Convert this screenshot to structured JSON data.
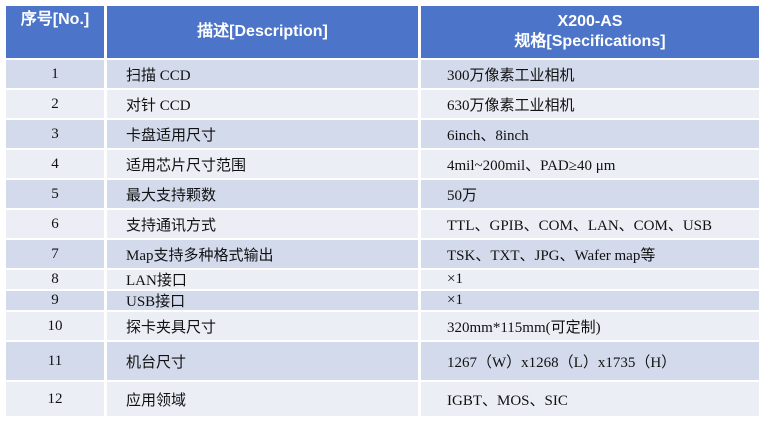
{
  "table": {
    "headers": {
      "no": "序号[No.]",
      "description": "描述[Description]",
      "spec_line1": "X200-AS",
      "spec_line2": "规格[Specifications]"
    },
    "rows": [
      {
        "no": "1",
        "description": "扫描 CCD",
        "spec": "300万像素工业相机"
      },
      {
        "no": "2",
        "description": "对针 CCD",
        "spec": "630万像素工业相机"
      },
      {
        "no": "3",
        "description": "卡盘适用尺寸",
        "spec": "6inch、8inch"
      },
      {
        "no": "4",
        "description": "适用芯片尺寸范围",
        "spec": "4mil~200mil、PAD≥40 μm"
      },
      {
        "no": "5",
        "description": "最大支持颗数",
        "spec": "50万"
      },
      {
        "no": "6",
        "description": "支持通讯方式",
        "spec": "TTL、GPIB、COM、LAN、COM、USB"
      },
      {
        "no": "7",
        "description": "Map支持多种格式输出",
        "spec": "TSK、TXT、JPG、Wafer map等"
      },
      {
        "no": "8",
        "description": "LAN接口",
        "spec": "×1"
      },
      {
        "no": "9",
        "description": "USB接口",
        "spec": "×1"
      },
      {
        "no": "10",
        "description": "探卡夹具尺寸",
        "spec": "320mm*115mm(可定制)"
      },
      {
        "no": "11",
        "description": "机台尺寸",
        "spec": "1267（W）x1268（L）x1735（H）"
      },
      {
        "no": "12",
        "description": "应用领域",
        "spec": "IGBT、MOS、SIC"
      }
    ],
    "colors": {
      "header_bg": "#4C74C8",
      "header_text": "#FFFFFF",
      "band_odd": "#D3DAEB",
      "band_even": "#EBEEF5",
      "body_text": "#111111"
    }
  }
}
